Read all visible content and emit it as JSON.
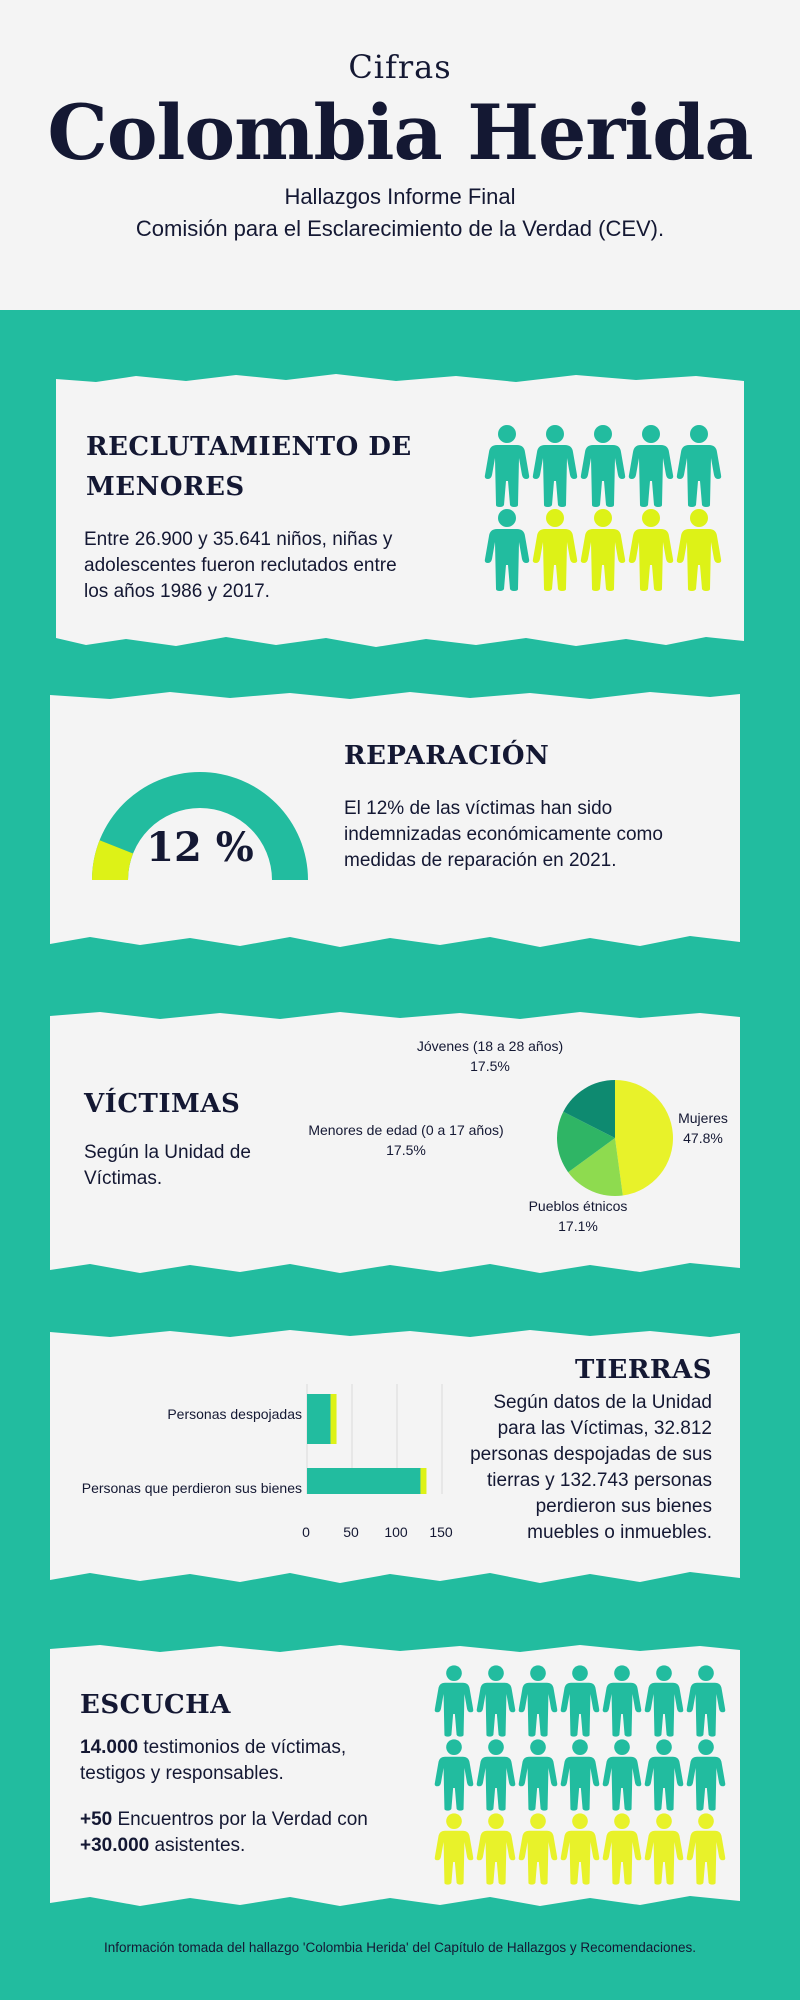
{
  "header": {
    "top_label": "Cifras",
    "title": "Colombia Herida",
    "subtitle_line1": "Hallazgos Informe Final",
    "subtitle_line2": "Comisión para el Esclarecimiento de la Verdad (CEV)."
  },
  "colors": {
    "teal": "#22BC9F",
    "dark_teal": "#0E8A70",
    "lime": "#DDF217",
    "light_bg": "#F4F4F4",
    "navy": "#141833"
  },
  "reclutamiento": {
    "title_line1": "RECLUTAMIENTO DE",
    "title_line2": "MENORES",
    "text_line1": "Entre 26.900 y 35.641 niños, niñas y",
    "text_line2": "adolescentes fueron reclutados entre",
    "text_line3": "los años 1986 y 2017.",
    "icon": "person-icon",
    "teal_count": 6,
    "lime_count": 4,
    "total": 10
  },
  "reparacion": {
    "title": "REPARACIÓN",
    "gauge_value_label": "12 %",
    "gauge_percent": 12,
    "text_line1": "El 12% de las víctimas han sido",
    "text_line2": "indemnizadas económicamente como",
    "text_line3": "medidas de reparación en 2021."
  },
  "victimas": {
    "title": "VÍCTIMAS",
    "text_line1": "Según la Unidad de",
    "text_line2": "Víctimas.",
    "slices": [
      {
        "name": "Mujeres",
        "pct_label": "47.8%",
        "value": 47.8,
        "color": "#E8F22A"
      },
      {
        "name": "Pueblos étnicos",
        "pct_label": "17.1%",
        "value": 17.1,
        "color": "#8EDB4F"
      },
      {
        "name": "Menores de edad (0 a 17 años)",
        "pct_label": "17.5%",
        "value": 17.5,
        "color": "#2FB565"
      },
      {
        "name": "Jóvenes (18 a 28 años)",
        "pct_label": "17.5%",
        "value": 17.5,
        "color": "#0E8A70"
      }
    ]
  },
  "tierras": {
    "title": "TIERRAS",
    "text_line1": "Según datos de la Unidad",
    "text_line2": "para las Víctimas, 32.812",
    "text_line3": "personas despojadas de sus",
    "text_line4": "tierras y 132.743 personas",
    "text_line5": "perdieron sus bienes",
    "text_line6": "muebles o inmuebles.",
    "tick_labels": [
      "0",
      "50",
      "100",
      "150"
    ]
  },
  "chart_data": {
    "type": "bar",
    "orientation": "horizontal",
    "categories": [
      "Personas despojadas",
      "Personas que perdieron sus bienes"
    ],
    "values": [
      32.812,
      132.743
    ],
    "xlim": [
      0,
      150
    ],
    "xticks": [
      0,
      50,
      100,
      150
    ],
    "grid": true
  },
  "escucha": {
    "title": "ESCUCHA",
    "testimonios_bold": "14.000",
    "testimonios_rest": " testimonios de víctimas,",
    "testimonios_line2": "testigos y responsables.",
    "encuentros_bold": "+50",
    "encuentros_rest": " Encuentros por la Verdad con",
    "asistentes_bold": "+30.000",
    "asistentes_rest": " asistentes.",
    "icon": "person-icon",
    "teal_count": 14,
    "lime_count": 7
  },
  "footer": {
    "text": "Información tomada del hallazgo 'Colombia Herida' del Capítulo de Hallazgos y Recomendaciones."
  }
}
